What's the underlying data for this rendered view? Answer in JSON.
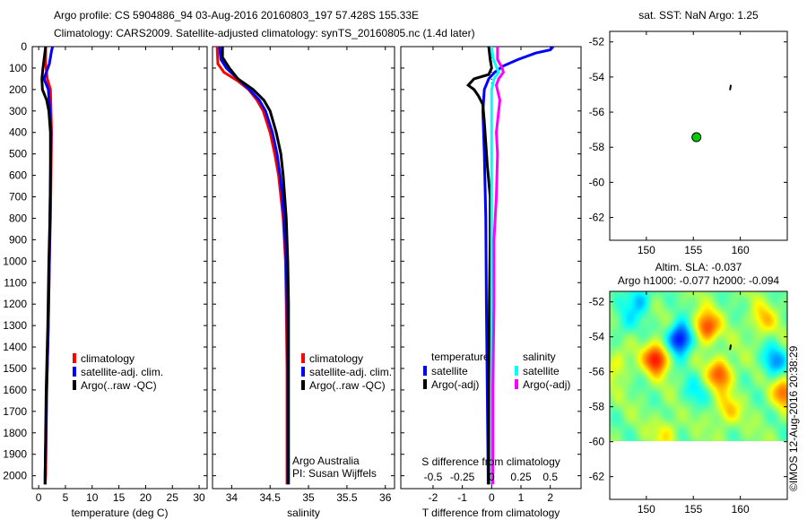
{
  "title_line1": "Argo profile: CS 5904886_94 03-Aug-2016 20160803_197 57.428S 155.33E",
  "title_line2": "Climatology: CARS2009. Satellite-adjusted climatology: synTS_20160805.nc (1.4d later)",
  "credit": "Argo Australia",
  "pi": "PI: Susan Wijffels",
  "stamp": "©IMOS 12-Aug-2016 20:38:29",
  "colors": {
    "climatology": "#ff0000",
    "satellite": "#0000ff",
    "argo": "#000000",
    "sal_satellite": "#00ffff",
    "sal_argo": "#ff00ff",
    "dot": "#00cc00"
  },
  "chart_data": [
    {
      "type": "line",
      "id": "temperature",
      "xlabel": "temperature (deg C)",
      "xlim": [
        -1.2,
        31.5
      ],
      "xticks": [
        0,
        5,
        10,
        15,
        20,
        25,
        30
      ],
      "ylim": [
        0,
        2060
      ],
      "yticks": [
        0,
        100,
        200,
        300,
        400,
        500,
        600,
        700,
        800,
        900,
        1000,
        1100,
        1200,
        1300,
        1400,
        1500,
        1600,
        1700,
        1800,
        1900,
        2000
      ],
      "legend": [
        "climatology",
        "satellite-adj. clim.",
        "Argo(..raw -QC)"
      ],
      "series": [
        {
          "name": "climatology",
          "color": "#ff0000",
          "depth": [
            0,
            80,
            150,
            200,
            300,
            400,
            600,
            800,
            1000,
            1300,
            1600,
            2000,
            2040
          ],
          "values": [
            1.3,
            1.3,
            1.6,
            2.2,
            2.3,
            2.4,
            2.3,
            2.2,
            2.0,
            1.8,
            1.5,
            1.3,
            1.2
          ]
        },
        {
          "name": "satellite-adj. clim.",
          "color": "#0000ff",
          "depth": [
            0,
            20,
            80,
            150,
            200,
            300,
            400,
            600,
            800,
            1000,
            1300,
            1600,
            2000,
            2040
          ],
          "values": [
            2.6,
            2.4,
            2.0,
            1.0,
            1.8,
            2.1,
            2.3,
            2.2,
            2.1,
            2.0,
            1.8,
            1.5,
            1.2,
            1.2
          ]
        },
        {
          "name": "Argo(..raw -QC)",
          "color": "#000000",
          "depth": [
            0,
            60,
            100,
            150,
            200,
            250,
            300,
            400,
            600,
            800,
            1000,
            1300,
            1600,
            2000,
            2040
          ],
          "values": [
            1.3,
            1.0,
            0.8,
            0.6,
            0.7,
            1.5,
            1.9,
            2.2,
            2.2,
            2.1,
            1.9,
            1.7,
            1.4,
            1.2,
            1.2
          ]
        }
      ]
    },
    {
      "type": "line",
      "id": "salinity",
      "xlabel": "salinity",
      "xlim": [
        33.75,
        36.12
      ],
      "xticks": [
        34,
        34.5,
        35,
        35.5,
        36
      ],
      "ylim": [
        0,
        2060
      ],
      "legend": [
        "climatology",
        "satellite-adj. clim.",
        "Argo(..raw -QC)"
      ],
      "series": [
        {
          "name": "climatology",
          "color": "#ff0000",
          "depth": [
            0,
            80,
            120,
            160,
            200,
            250,
            300,
            400,
            500,
            600,
            700,
            800,
            1000,
            1200,
            1500,
            2000,
            2040
          ],
          "values": [
            33.81,
            33.82,
            33.9,
            34.08,
            34.22,
            34.33,
            34.41,
            34.5,
            34.56,
            34.61,
            34.64,
            34.67,
            34.7,
            34.71,
            34.72,
            34.72,
            34.72
          ]
        },
        {
          "name": "satellite-adj. clim.",
          "color": "#0000ff",
          "depth": [
            0,
            60,
            100,
            150,
            200,
            250,
            300,
            400,
            500,
            600,
            700,
            800,
            1000,
            1200,
            1500,
            2000,
            2040
          ],
          "values": [
            33.84,
            33.86,
            33.93,
            34.08,
            34.23,
            34.36,
            34.44,
            34.53,
            34.59,
            34.63,
            34.66,
            34.68,
            34.71,
            34.72,
            34.73,
            34.73,
            34.73
          ]
        },
        {
          "name": "Argo(..raw -QC)",
          "color": "#000000",
          "depth": [
            0,
            50,
            100,
            150,
            200,
            250,
            300,
            400,
            500,
            600,
            700,
            800,
            1000,
            1200,
            1500,
            2000,
            2040
          ],
          "values": [
            33.88,
            33.88,
            33.97,
            34.08,
            34.28,
            34.42,
            34.5,
            34.58,
            34.64,
            34.67,
            34.69,
            34.71,
            34.73,
            34.74,
            34.74,
            34.74,
            34.74
          ]
        }
      ]
    },
    {
      "type": "line",
      "id": "difference",
      "xlabel": "T difference from climatology",
      "xlabel_top": "S difference from climatology",
      "xlim": [
        -3.1,
        3.05
      ],
      "xticks": [
        -2,
        -1,
        0,
        1,
        2
      ],
      "xlim_s": [
        -0.775,
        0.7625
      ],
      "xticks_s": [
        -0.5,
        -0.25,
        0,
        0.25,
        0.5
      ],
      "xticklabels_s": [
        "-0.5",
        "-0.25",
        "0",
        "0.25",
        "0.5"
      ],
      "ylim": [
        0,
        2060
      ],
      "legend_t_title": "temperature",
      "legend_s_title": "salinity",
      "legend_t": [
        "satellite",
        "Argo(-adj)"
      ],
      "legend_s": [
        "satellite",
        "Argo(-adj)"
      ],
      "series": [
        {
          "name": "temperature satellite",
          "scale": "T",
          "color": "#0000ff",
          "depth": [
            0,
            15,
            30,
            60,
            90,
            120,
            150,
            200,
            300,
            500,
            800,
            1200,
            1600,
            2000,
            2040
          ],
          "values": [
            2.1,
            2.0,
            1.5,
            0.9,
            0.4,
            0.1,
            -0.1,
            -0.25,
            -0.3,
            -0.25,
            -0.2,
            -0.18,
            -0.15,
            -0.12,
            -0.12
          ]
        },
        {
          "name": "temperature Argo(-adj)",
          "scale": "T",
          "color": "#000000",
          "depth": [
            0,
            60,
            100,
            130,
            150,
            180,
            200,
            230,
            270,
            350,
            450,
            550,
            700,
            900,
            1200,
            1600,
            2000,
            2040
          ],
          "values": [
            -0.1,
            -0.05,
            0.0,
            -0.1,
            -0.6,
            -0.8,
            -0.6,
            -0.45,
            -0.3,
            -0.25,
            -0.2,
            -0.15,
            -0.05,
            -0.05,
            -0.08,
            -0.1,
            -0.1,
            -0.1
          ]
        },
        {
          "name": "salinity satellite",
          "scale": "S",
          "color": "#00ffff",
          "depth": [
            0,
            50,
            80,
            120,
            150,
            200,
            300,
            500,
            800,
            1200,
            1600,
            2000,
            2040
          ],
          "values": [
            0.0,
            0.01,
            0.03,
            0.06,
            0.02,
            0.0,
            0.0,
            0.0,
            0.0,
            0.0,
            0.0,
            0.0,
            0.0
          ]
        },
        {
          "name": "salinity Argo(-adj)",
          "scale": "S",
          "color": "#ff00ff",
          "depth": [
            0,
            60,
            100,
            120,
            150,
            180,
            250,
            300,
            400,
            500,
            700,
            900,
            1200,
            1600,
            2000,
            2040
          ],
          "values": [
            0.05,
            0.05,
            0.09,
            0.1,
            0.06,
            0.04,
            0.07,
            0.06,
            0.04,
            0.05,
            0.04,
            0.02,
            0.02,
            0.01,
            0.01,
            0.01
          ]
        }
      ]
    },
    {
      "type": "scatter",
      "id": "sst-map",
      "title": "sat. SST: NaN Argo: 1.25",
      "xlim": [
        146.1,
        165
      ],
      "ylim": [
        -63.3,
        -51.4
      ],
      "xticks": [
        150,
        155,
        160
      ],
      "yticks": [
        -52,
        -54,
        -56,
        -58,
        -60,
        -62
      ],
      "profile_position": {
        "lon": 155.33,
        "lat": -57.428
      },
      "track": [
        [
          158.9,
          -54.75
        ],
        [
          159.0,
          -54.45
        ]
      ]
    },
    {
      "type": "heatmap",
      "id": "sla-map",
      "title_line1": "Altim. SLA: -0.037",
      "title_line2": "Argo h1000: -0.077 h2000: -0.094",
      "xlim": [
        146.1,
        165
      ],
      "ylim": [
        -63.3,
        -51.4
      ],
      "data_lat_min": -60,
      "xticks": [
        150,
        155,
        160
      ],
      "yticks": [
        -52,
        -54,
        -56,
        -58,
        -60,
        -62
      ],
      "track": [
        [
          158.9,
          -54.75
        ],
        [
          159.0,
          -54.45
        ]
      ],
      "anomalies": [
        {
          "lon": 153.5,
          "lat": -54.1,
          "amp": -1.0
        },
        {
          "lon": 149.2,
          "lat": -51.8,
          "amp": -0.45
        },
        {
          "lon": 163.5,
          "lat": -55.4,
          "amp": -0.5
        },
        {
          "lon": 155,
          "lat": -57.2,
          "amp": -0.25
        },
        {
          "lon": 147.5,
          "lat": -53.2,
          "amp": -0.25
        },
        {
          "lon": 156.3,
          "lat": -53.4,
          "amp": 0.8
        },
        {
          "lon": 151,
          "lat": -55.2,
          "amp": 0.9
        },
        {
          "lon": 157.8,
          "lat": -56.1,
          "amp": 0.7
        },
        {
          "lon": 164.6,
          "lat": -57.2,
          "amp": 0.6
        },
        {
          "lon": 158.5,
          "lat": -58.2,
          "amp": 0.4
        },
        {
          "lon": 162.3,
          "lat": -53.0,
          "amp": 0.4
        },
        {
          "lon": 146.8,
          "lat": -55.6,
          "amp": 0.3
        },
        {
          "lon": 152,
          "lat": -59.5,
          "amp": 0.3
        }
      ]
    }
  ]
}
